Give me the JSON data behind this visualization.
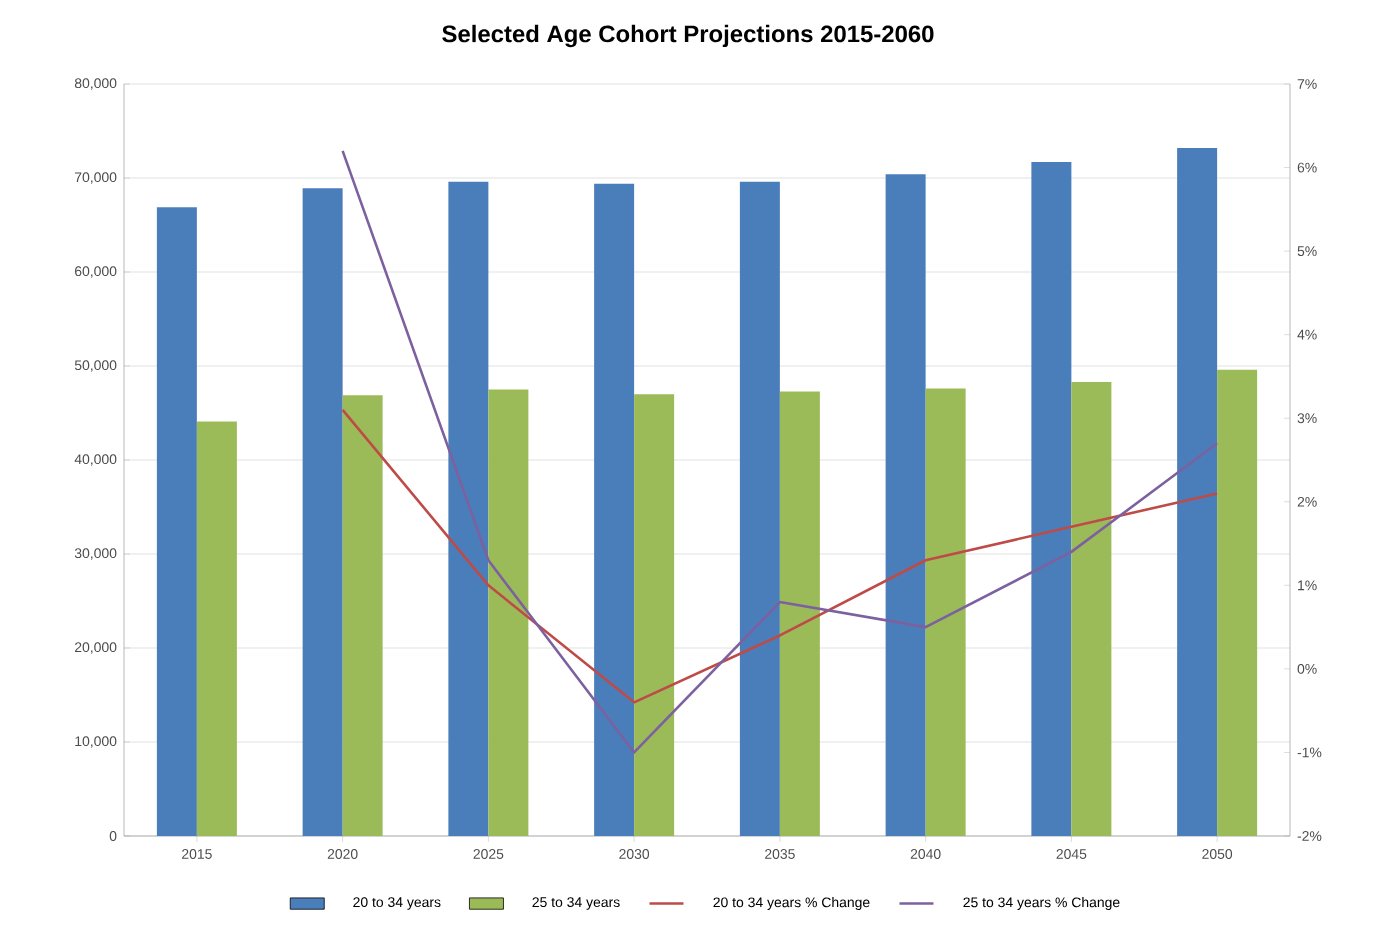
{
  "chart_data": {
    "type": "bar",
    "title": "Selected Age Cohort Projections  2015-2060",
    "categories": [
      "2015",
      "2020",
      "2025",
      "2030",
      "2035",
      "2040",
      "2045",
      "2050"
    ],
    "series": [
      {
        "name": "20 to 34 years",
        "color": "#4a7ebb",
        "values": [
          66900,
          68900,
          69600,
          69400,
          69600,
          70400,
          71700,
          73200
        ]
      },
      {
        "name": "25 to 34 years",
        "color": "#9bbb59",
        "values": [
          44100,
          46900,
          47500,
          47000,
          47300,
          47600,
          48300,
          49600
        ]
      },
      {
        "name": "20 to 34 years % Change",
        "type": "line",
        "axis": "y2",
        "color": "#be4b48",
        "values": [
          null,
          3.1,
          1.0,
          -0.4,
          0.4,
          1.3,
          1.7,
          2.1
        ]
      },
      {
        "name": "25 to 34 years % Change",
        "type": "line",
        "axis": "y2",
        "color": "#7d60a0",
        "values": [
          null,
          6.2,
          1.3,
          -1.0,
          0.8,
          0.5,
          1.4,
          2.7
        ]
      }
    ],
    "ylim": [
      0,
      80000
    ],
    "yticks": [
      0,
      {
        "value": 10000,
        "label": "10,000"
      },
      {
        "value": 20000,
        "label": "20,000"
      },
      {
        "value": 30000,
        "label": "30,000"
      },
      {
        "value": 40000,
        "label": "40,000"
      },
      {
        "value": 50000,
        "label": "50,000"
      },
      {
        "value": 60000,
        "label": "60,000"
      },
      {
        "value": 70000,
        "label": "70,000"
      },
      {
        "value": 80000,
        "label": "80,000"
      }
    ],
    "y2lim": [
      -2,
      7
    ],
    "y2ticks": [
      {
        "value": -2,
        "label": "-2%"
      },
      {
        "value": -1,
        "label": "-1%"
      },
      {
        "value": 0,
        "label": "0%"
      },
      {
        "value": 1,
        "label": "1%"
      },
      {
        "value": 2,
        "label": "2%"
      },
      {
        "value": 3,
        "label": "3%"
      },
      {
        "value": 4,
        "label": "4%"
      },
      {
        "value": 5,
        "label": "5%"
      },
      {
        "value": 6,
        "label": "6%"
      },
      {
        "value": 7,
        "label": "7%"
      }
    ],
    "grid": "y",
    "legend": "bottom",
    "marker": "none",
    "line_style": "solid"
  }
}
